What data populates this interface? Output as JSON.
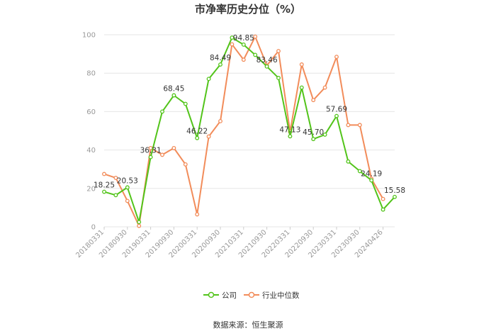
{
  "chart_data": {
    "type": "line",
    "title": "市净率历史分位（%）",
    "xlabel": "",
    "ylabel": "",
    "ylim": [
      0,
      100
    ],
    "yticks": [
      0,
      20,
      40,
      60,
      80,
      100
    ],
    "grid": true,
    "legend_position": "bottom",
    "x_tick_labels": [
      "20180331",
      "20180930",
      "20190331",
      "20190930",
      "20200331",
      "20200930",
      "20210331",
      "20210930",
      "20220331",
      "20220930",
      "20230331",
      "20230930",
      "20240426"
    ],
    "series": [
      {
        "name": "公司",
        "color": "#52c41a",
        "values": [
          18.25,
          16.5,
          20.53,
          2.5,
          36.31,
          60.0,
          68.45,
          64.0,
          46.22,
          77.0,
          84.49,
          98.5,
          94.85,
          89.5,
          83.46,
          77.5,
          47.13,
          72.5,
          45.7,
          48.0,
          57.69,
          34.0,
          29.0,
          24.19,
          9.0,
          15.58
        ]
      },
      {
        "name": "行业中位数",
        "color": "#f28c5a",
        "values": [
          27.5,
          25.5,
          13.5,
          0.5,
          41.0,
          37.5,
          41.0,
          32.5,
          6.5,
          47.0,
          55.0,
          95.0,
          87.0,
          99.0,
          84.0,
          91.5,
          49.5,
          84.5,
          66.0,
          72.5,
          88.5,
          53.0,
          53.0,
          25.0,
          14.5
        ]
      }
    ],
    "data_labels": [
      {
        "series": 0,
        "index": 0,
        "text": "18.25"
      },
      {
        "series": 0,
        "index": 2,
        "text": "20.53"
      },
      {
        "series": 0,
        "index": 4,
        "text": "36.31"
      },
      {
        "series": 0,
        "index": 6,
        "text": "68.45"
      },
      {
        "series": 0,
        "index": 8,
        "text": "46.22"
      },
      {
        "series": 0,
        "index": 10,
        "text": "84.49"
      },
      {
        "series": 0,
        "index": 12,
        "text": "94.85"
      },
      {
        "series": 0,
        "index": 14,
        "text": "83.46"
      },
      {
        "series": 0,
        "index": 16,
        "text": "47.13"
      },
      {
        "series": 0,
        "index": 18,
        "text": "45.70"
      },
      {
        "series": 0,
        "index": 20,
        "text": "57.69"
      },
      {
        "series": 0,
        "index": 23,
        "text": "24.19"
      },
      {
        "series": 0,
        "index": 25,
        "text": "15.58"
      }
    ]
  },
  "legend": {
    "company": "公司",
    "industry": "行业中位数"
  },
  "source": "数据来源：恒生聚源"
}
